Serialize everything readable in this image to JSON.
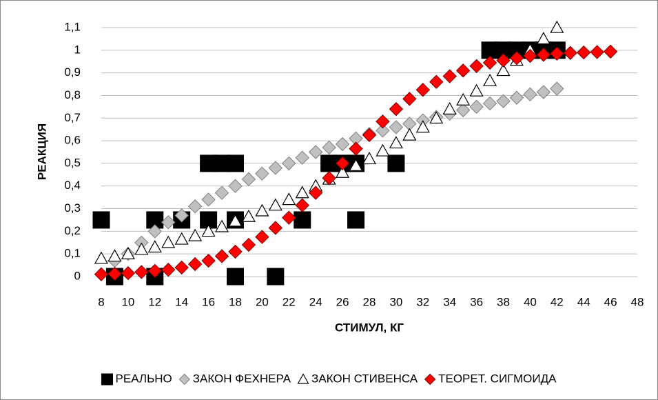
{
  "chart_data": {
    "type": "scatter",
    "xlabel": "СТИМУЛ, КГ",
    "ylabel": "РЕАКЦИЯ",
    "xlim": [
      8,
      48
    ],
    "xticks": [
      8,
      10,
      12,
      14,
      16,
      18,
      20,
      22,
      24,
      26,
      28,
      30,
      32,
      34,
      36,
      38,
      40,
      42,
      44,
      46,
      48
    ],
    "ylim": [
      0,
      1.1
    ],
    "yticks": [
      0,
      {
        "value": 0.1,
        "label": "0,1"
      },
      {
        "value": 0.2,
        "label": "0,2"
      },
      {
        "value": 0.3,
        "label": "0,3"
      },
      {
        "value": 0.4,
        "label": "0,4"
      },
      {
        "value": 0.5,
        "label": "0,5"
      },
      {
        "value": 0.6,
        "label": "0,6"
      },
      {
        "value": 0.7,
        "label": "0,7"
      },
      {
        "value": 0.8,
        "label": "0,8"
      },
      {
        "value": 0.9,
        "label": "0,9"
      },
      1,
      {
        "value": 1.1,
        "label": "1,1"
      }
    ],
    "grid": true,
    "legend": "bottom",
    "series": [
      {
        "name": "РЕАЛЬНО",
        "color": "#000000",
        "marker": "square",
        "x": [
          8,
          9,
          12,
          12,
          14,
          16,
          16,
          17,
          18,
          18,
          18,
          21,
          23,
          25,
          26,
          27,
          27,
          30,
          37,
          38,
          39,
          40,
          41,
          42
        ],
        "values": [
          0.25,
          0,
          0.25,
          0,
          0.25,
          0.25,
          0.5,
          0.5,
          0.5,
          0,
          0.25,
          0,
          0.25,
          0.5,
          0.5,
          0.5,
          0.25,
          0.5,
          1,
          1,
          1,
          1,
          1,
          1
        ]
      },
      {
        "name": "ЗАКОН ФЕХНЕРА",
        "color": "#c0c0c0",
        "marker": "diamond",
        "x": [
          9,
          10,
          11,
          12,
          13,
          14,
          15,
          16,
          17,
          18,
          19,
          20,
          21,
          22,
          23,
          24,
          25,
          26,
          27,
          28,
          29,
          30,
          31,
          32,
          33,
          34,
          35,
          36,
          37,
          38,
          39,
          40,
          41,
          42
        ],
        "values": [
          0.07,
          0.1,
          0.15,
          0.2,
          0.24,
          0.27,
          0.31,
          0.34,
          0.37,
          0.4,
          0.43,
          0.455,
          0.48,
          0.5,
          0.525,
          0.55,
          0.57,
          0.585,
          0.61,
          0.63,
          0.645,
          0.66,
          0.675,
          0.69,
          0.705,
          0.72,
          0.735,
          0.75,
          0.765,
          0.775,
          0.79,
          0.805,
          0.815,
          0.83
        ]
      },
      {
        "name": "ЗАКОН СТИВЕНСА",
        "color": "#ffffff",
        "marker": "triangle",
        "x": [
          8,
          9,
          10,
          11,
          12,
          13,
          14,
          15,
          16,
          17,
          18,
          19,
          20,
          21,
          22,
          23,
          24,
          25,
          26,
          27,
          28,
          29,
          30,
          31,
          32,
          33,
          34,
          35,
          36,
          37,
          38,
          39,
          40,
          41,
          42
        ],
        "values": [
          0.08,
          0.09,
          0.1,
          0.12,
          0.13,
          0.15,
          0.165,
          0.18,
          0.2,
          0.22,
          0.245,
          0.265,
          0.29,
          0.315,
          0.34,
          0.37,
          0.4,
          0.43,
          0.46,
          0.49,
          0.52,
          0.555,
          0.59,
          0.625,
          0.66,
          0.7,
          0.74,
          0.78,
          0.82,
          0.865,
          0.91,
          0.955,
          1.0,
          1.05,
          1.1
        ]
      },
      {
        "name": "ТЕОРЕТ. СИГМОИДА",
        "color": "#ff0000",
        "marker": "diamond",
        "x": [
          8,
          9,
          10,
          11,
          12,
          13,
          14,
          15,
          16,
          17,
          18,
          19,
          20,
          21,
          22,
          23,
          24,
          25,
          26,
          27,
          28,
          29,
          30,
          31,
          32,
          33,
          34,
          35,
          36,
          37,
          38,
          39,
          40,
          41,
          42,
          43,
          44,
          45,
          46
        ],
        "values": [
          0.01,
          0.012,
          0.015,
          0.02,
          0.025,
          0.03,
          0.04,
          0.055,
          0.07,
          0.09,
          0.11,
          0.14,
          0.175,
          0.215,
          0.26,
          0.315,
          0.37,
          0.435,
          0.5,
          0.565,
          0.625,
          0.685,
          0.74,
          0.785,
          0.825,
          0.86,
          0.885,
          0.91,
          0.93,
          0.945,
          0.955,
          0.965,
          0.975,
          0.98,
          0.985,
          0.988,
          0.99,
          0.992,
          0.994
        ]
      }
    ]
  }
}
